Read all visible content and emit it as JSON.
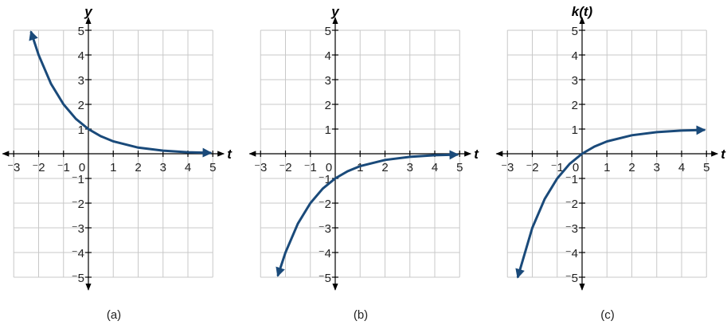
{
  "chart_data": [
    {
      "type": "line",
      "caption": "(a)",
      "xlabel": "t",
      "ylabel": "y",
      "xlim": [
        -3,
        5
      ],
      "ylim": [
        -5,
        5
      ],
      "xticks": [
        -3,
        -2,
        -1,
        0,
        1,
        2,
        3,
        4,
        5
      ],
      "yticks": [
        -5,
        -4,
        -3,
        -2,
        -1,
        1,
        2,
        3,
        4,
        5
      ],
      "grid": true,
      "arrows_at_ends": true,
      "points": [
        [
          -2.3,
          4.92
        ],
        [
          -2,
          4
        ],
        [
          -1.5,
          2.83
        ],
        [
          -1,
          2
        ],
        [
          -0.5,
          1.41
        ],
        [
          0,
          1
        ],
        [
          0.5,
          0.71
        ],
        [
          1,
          0.5
        ],
        [
          2,
          0.25
        ],
        [
          3,
          0.125
        ],
        [
          4,
          0.0625
        ],
        [
          4.9,
          0.034
        ]
      ]
    },
    {
      "type": "line",
      "caption": "(b)",
      "xlabel": "t",
      "ylabel": "y",
      "xlim": [
        -3,
        5
      ],
      "ylim": [
        -5,
        5
      ],
      "xticks": [
        -3,
        -2,
        -1,
        0,
        1,
        2,
        3,
        4,
        5
      ],
      "yticks": [
        -5,
        -4,
        -3,
        -2,
        -1,
        1,
        2,
        3,
        4,
        5
      ],
      "grid": true,
      "arrows_at_ends": true,
      "points": [
        [
          -2.3,
          -4.92
        ],
        [
          -2,
          -4
        ],
        [
          -1.5,
          -2.83
        ],
        [
          -1,
          -2
        ],
        [
          -0.5,
          -1.41
        ],
        [
          0,
          -1
        ],
        [
          0.5,
          -0.71
        ],
        [
          1,
          -0.5
        ],
        [
          2,
          -0.25
        ],
        [
          3,
          -0.125
        ],
        [
          4,
          -0.0625
        ],
        [
          4.9,
          -0.034
        ]
      ]
    },
    {
      "type": "line",
      "caption": "(c)",
      "xlabel": "t",
      "ylabel": "k(t)",
      "xlim": [
        -3,
        5
      ],
      "ylim": [
        -5,
        5
      ],
      "xticks": [
        -3,
        -2,
        -1,
        0,
        1,
        2,
        3,
        4,
        5
      ],
      "yticks": [
        -5,
        -4,
        -3,
        -2,
        -1,
        1,
        2,
        3,
        4,
        5
      ],
      "grid": true,
      "arrows_at_ends": true,
      "points": [
        [
          -2.58,
          -4.98
        ],
        [
          -2,
          -3
        ],
        [
          -1.5,
          -1.83
        ],
        [
          -1,
          -1
        ],
        [
          -0.5,
          -0.41
        ],
        [
          0,
          0
        ],
        [
          0.5,
          0.29
        ],
        [
          1,
          0.5
        ],
        [
          2,
          0.75
        ],
        [
          3,
          0.875
        ],
        [
          4,
          0.9375
        ],
        [
          4.9,
          0.966
        ]
      ]
    }
  ],
  "colors": {
    "curve": "#1a4a7a",
    "grid": "#c8c8c8",
    "axis": "#000000"
  }
}
